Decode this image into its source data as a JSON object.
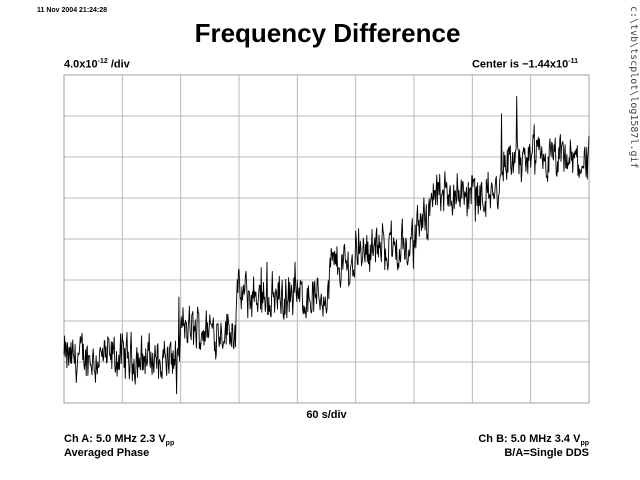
{
  "header": {
    "timestamp": "11 Nov 2004 21:24:28",
    "title": "Frequency Difference",
    "scale_mantissa": "4.0x10",
    "scale_exp": "-12",
    "scale_unit": " /div",
    "center_prefix": "Center is −1.44x10",
    "center_exp": "-11",
    "filepath": "c:\\tvb\\tscplot\\log1587l.gif"
  },
  "footer": {
    "x_scale": "60 s/div",
    "ch_a_text": "Ch A: 5.0 MHz 2.3 V",
    "ch_a_sub": "pp",
    "ch_a_mode": "Averaged Phase",
    "ch_b_text": "Ch B: 5.0 MHz 3.4 V",
    "ch_b_sub": "pp",
    "ratio_label": "B/A=Single DDS"
  },
  "colors": {
    "line": "#000000",
    "grid": "#b8b8b8",
    "frame": "#a0a0a0"
  },
  "chart_data": {
    "type": "line",
    "title": "Frequency Difference",
    "xlabel": "60 s/div",
    "ylabel": "4.0x10^-12 /div",
    "y_center": -1.44e-11,
    "divisions": {
      "x": 9,
      "y": 8
    },
    "grid": true,
    "xlim_div": [
      0,
      9
    ],
    "ylim_div": [
      -4,
      4
    ],
    "series": [
      {
        "levels_div": [
          {
            "x": [
              0.0,
              2.0
            ],
            "y": -2.9
          },
          {
            "x": [
              2.0,
              2.95
            ],
            "y": -2.2
          },
          {
            "x": [
              2.95,
              4.55
            ],
            "y": -1.4
          },
          {
            "x": [
              4.55,
              5.0
            ],
            "y": -0.65
          },
          {
            "x": [
              5.0,
              6.05
            ],
            "y": -0.2
          },
          {
            "x": [
              6.05,
              6.25
            ],
            "y": 0.45
          },
          {
            "x": [
              6.25,
              7.5
            ],
            "y": 1.1
          },
          {
            "x": [
              7.5,
              9.0
            ],
            "y": 1.88
          }
        ]
      }
    ]
  }
}
